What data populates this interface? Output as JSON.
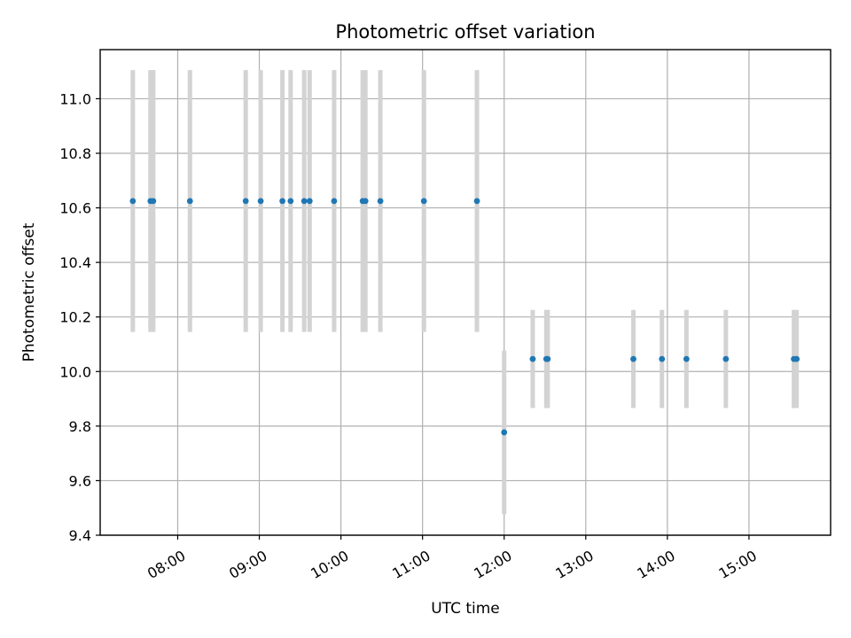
{
  "chart_data": {
    "type": "scatter",
    "title": "Photometric offset variation",
    "xlabel": "UTC time",
    "ylabel": "Photometric offset",
    "grid": true,
    "xlim_hours": [
      7.05,
      16.0
    ],
    "ylim": [
      9.4,
      11.18
    ],
    "x_ticks": [
      {
        "hour": 8,
        "label": "08:00"
      },
      {
        "hour": 9,
        "label": "09:00"
      },
      {
        "hour": 10,
        "label": "10:00"
      },
      {
        "hour": 11,
        "label": "11:00"
      },
      {
        "hour": 12,
        "label": "12:00"
      },
      {
        "hour": 13,
        "label": "13:00"
      },
      {
        "hour": 14,
        "label": "14:00"
      },
      {
        "hour": 15,
        "label": "15:00"
      }
    ],
    "y_ticks": [
      {
        "value": 9.4,
        "label": "9.4"
      },
      {
        "value": 9.6,
        "label": "9.6"
      },
      {
        "value": 9.8,
        "label": "9.8"
      },
      {
        "value": 10.0,
        "label": "10.0"
      },
      {
        "value": 10.2,
        "label": "10.2"
      },
      {
        "value": 10.4,
        "label": "10.4"
      },
      {
        "value": 10.6,
        "label": "10.6"
      },
      {
        "value": 10.8,
        "label": "10.8"
      },
      {
        "value": 11.0,
        "label": "11.0"
      }
    ],
    "marker_color": "#1f77b4",
    "errorbar_color": "#d3d3d3",
    "points": [
      {
        "time": "07:27",
        "y": 10.625,
        "err": 0.48
      },
      {
        "time": "07:40",
        "y": 10.625,
        "err": 0.48
      },
      {
        "time": "07:42",
        "y": 10.625,
        "err": 0.48
      },
      {
        "time": "08:09",
        "y": 10.625,
        "err": 0.48
      },
      {
        "time": "08:50",
        "y": 10.625,
        "err": 0.48
      },
      {
        "time": "09:01",
        "y": 10.625,
        "err": 0.48
      },
      {
        "time": "09:17",
        "y": 10.625,
        "err": 0.48
      },
      {
        "time": "09:23",
        "y": 10.625,
        "err": 0.48
      },
      {
        "time": "09:33",
        "y": 10.625,
        "err": 0.48
      },
      {
        "time": "09:37",
        "y": 10.625,
        "err": 0.48
      },
      {
        "time": "09:55",
        "y": 10.625,
        "err": 0.48
      },
      {
        "time": "10:16",
        "y": 10.625,
        "err": 0.48
      },
      {
        "time": "10:18",
        "y": 10.625,
        "err": 0.48
      },
      {
        "time": "10:29",
        "y": 10.625,
        "err": 0.48
      },
      {
        "time": "11:01",
        "y": 10.625,
        "err": 0.48
      },
      {
        "time": "11:40",
        "y": 10.625,
        "err": 0.48
      },
      {
        "time": "12:00",
        "y": 9.777,
        "err": 0.3
      },
      {
        "time": "12:21",
        "y": 10.046,
        "err": 0.18
      },
      {
        "time": "12:31",
        "y": 10.046,
        "err": 0.18
      },
      {
        "time": "12:32",
        "y": 10.046,
        "err": 0.18
      },
      {
        "time": "13:35",
        "y": 10.046,
        "err": 0.18
      },
      {
        "time": "13:56",
        "y": 10.046,
        "err": 0.18
      },
      {
        "time": "14:14",
        "y": 10.046,
        "err": 0.18
      },
      {
        "time": "14:43",
        "y": 10.046,
        "err": 0.18
      },
      {
        "time": "15:33",
        "y": 10.046,
        "err": 0.18
      },
      {
        "time": "15:35",
        "y": 10.046,
        "err": 0.18
      }
    ]
  }
}
